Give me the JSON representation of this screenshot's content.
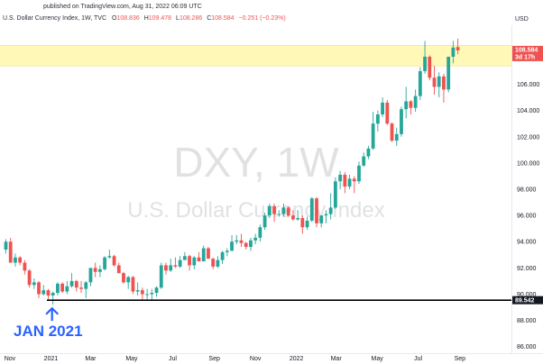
{
  "header": {
    "published": "published on TradingView.com, Aug 31, 2022 06:09 UTC",
    "symbol": "U.S. Dollar Currency Index, 1W, TVC",
    "o_label": "O",
    "o_value": "108.836",
    "h_label": "H",
    "h_value": "109.478",
    "l_label": "L",
    "l_value": "108.286",
    "c_label": "C",
    "c_value": "108.584",
    "change": "−0.251 (−0.23%)"
  },
  "watermark": {
    "line1": "DXY, 1W",
    "line2": "U.S. Dollar Currency Index"
  },
  "axis": {
    "currency": "USD",
    "price_labels": [
      "106.000",
      "104.000",
      "102.000",
      "100.000",
      "98.000",
      "96.000",
      "94.000",
      "92.000",
      "90.000",
      "88.000",
      "86.000"
    ],
    "time_labels": [
      "Nov",
      "2021",
      "Mar",
      "May",
      "Jul",
      "Sep",
      "Nov",
      "2022",
      "Mar",
      "May",
      "Jul",
      "Sep"
    ]
  },
  "price_tag": {
    "value": "108.584",
    "countdown": "3d 17h"
  },
  "support_tag": {
    "value": "89.542"
  },
  "annotation": {
    "text": "JAN 2021"
  },
  "colors": {
    "up": "#26a69a",
    "down": "#ef5350",
    "highlight": "#fff59d",
    "arrow": "#2962ff",
    "line": "#000000"
  },
  "chart_data": {
    "type": "candlestick",
    "title": "U.S. Dollar Currency Index, 1W, TVC",
    "interval": "1W",
    "ylim": [
      85.5,
      110.5
    ],
    "support_level": 89.542,
    "highlight_zone": [
      107.4,
      108.95
    ],
    "annotation": {
      "text": "JAN 2021",
      "x": "2021-01-04"
    },
    "candles": [
      {
        "x": "2020-10-26",
        "o": 93.4,
        "h": 94.2,
        "l": 93.1,
        "c": 94.0
      },
      {
        "x": "2020-11-02",
        "o": 94.0,
        "h": 94.3,
        "l": 92.4,
        "c": 92.4
      },
      {
        "x": "2020-11-09",
        "o": 92.4,
        "h": 93.1,
        "l": 92.1,
        "c": 92.8
      },
      {
        "x": "2020-11-16",
        "o": 92.8,
        "h": 92.9,
        "l": 92.2,
        "c": 92.4
      },
      {
        "x": "2020-11-23",
        "o": 92.4,
        "h": 92.6,
        "l": 91.5,
        "c": 91.8
      },
      {
        "x": "2020-11-30",
        "o": 91.8,
        "h": 91.9,
        "l": 90.5,
        "c": 90.7
      },
      {
        "x": "2020-12-07",
        "o": 90.7,
        "h": 91.2,
        "l": 90.4,
        "c": 90.9
      },
      {
        "x": "2020-12-14",
        "o": 90.9,
        "h": 91.0,
        "l": 89.7,
        "c": 90.0
      },
      {
        "x": "2020-12-21",
        "o": 90.0,
        "h": 90.7,
        "l": 89.9,
        "c": 90.3
      },
      {
        "x": "2020-12-28",
        "o": 90.3,
        "h": 90.4,
        "l": 89.6,
        "c": 89.9
      },
      {
        "x": "2021-01-04",
        "o": 89.9,
        "h": 90.2,
        "l": 89.2,
        "c": 90.1
      },
      {
        "x": "2021-01-11",
        "o": 90.1,
        "h": 90.9,
        "l": 89.9,
        "c": 90.8
      },
      {
        "x": "2021-01-18",
        "o": 90.8,
        "h": 90.9,
        "l": 90.1,
        "c": 90.2
      },
      {
        "x": "2021-01-25",
        "o": 90.2,
        "h": 91.0,
        "l": 90.0,
        "c": 90.6
      },
      {
        "x": "2021-02-01",
        "o": 90.6,
        "h": 91.6,
        "l": 90.5,
        "c": 91.0
      },
      {
        "x": "2021-02-08",
        "o": 91.0,
        "h": 91.1,
        "l": 90.2,
        "c": 90.5
      },
      {
        "x": "2021-02-15",
        "o": 90.5,
        "h": 91.0,
        "l": 90.1,
        "c": 90.4
      },
      {
        "x": "2021-02-22",
        "o": 90.4,
        "h": 91.0,
        "l": 89.7,
        "c": 90.9
      },
      {
        "x": "2021-03-01",
        "o": 90.9,
        "h": 92.0,
        "l": 90.6,
        "c": 92.0
      },
      {
        "x": "2021-03-08",
        "o": 92.0,
        "h": 92.4,
        "l": 91.3,
        "c": 91.7
      },
      {
        "x": "2021-03-15",
        "o": 91.7,
        "h": 92.2,
        "l": 91.3,
        "c": 91.9
      },
      {
        "x": "2021-03-22",
        "o": 91.9,
        "h": 92.9,
        "l": 91.8,
        "c": 92.8
      },
      {
        "x": "2021-03-29",
        "o": 92.8,
        "h": 93.4,
        "l": 92.7,
        "c": 92.9
      },
      {
        "x": "2021-04-05",
        "o": 92.9,
        "h": 93.0,
        "l": 92.1,
        "c": 92.2
      },
      {
        "x": "2021-04-12",
        "o": 92.2,
        "h": 92.4,
        "l": 91.6,
        "c": 91.6
      },
      {
        "x": "2021-04-19",
        "o": 91.6,
        "h": 91.7,
        "l": 90.8,
        "c": 90.9
      },
      {
        "x": "2021-04-26",
        "o": 90.9,
        "h": 91.4,
        "l": 90.4,
        "c": 91.3
      },
      {
        "x": "2021-05-03",
        "o": 91.3,
        "h": 91.4,
        "l": 90.0,
        "c": 90.2
      },
      {
        "x": "2021-05-10",
        "o": 90.2,
        "h": 90.9,
        "l": 89.9,
        "c": 90.3
      },
      {
        "x": "2021-05-17",
        "o": 90.3,
        "h": 90.5,
        "l": 89.6,
        "c": 90.0
      },
      {
        "x": "2021-05-24",
        "o": 90.0,
        "h": 90.4,
        "l": 89.6,
        "c": 90.0
      },
      {
        "x": "2021-05-31",
        "o": 90.0,
        "h": 90.4,
        "l": 89.5,
        "c": 90.1
      },
      {
        "x": "2021-06-07",
        "o": 90.1,
        "h": 90.6,
        "l": 89.8,
        "c": 90.5
      },
      {
        "x": "2021-06-14",
        "o": 90.5,
        "h": 92.4,
        "l": 90.4,
        "c": 92.2
      },
      {
        "x": "2021-06-21",
        "o": 92.2,
        "h": 92.4,
        "l": 91.5,
        "c": 91.8
      },
      {
        "x": "2021-06-28",
        "o": 91.8,
        "h": 92.7,
        "l": 91.7,
        "c": 92.2
      },
      {
        "x": "2021-07-05",
        "o": 92.2,
        "h": 92.8,
        "l": 92.0,
        "c": 92.1
      },
      {
        "x": "2021-07-12",
        "o": 92.1,
        "h": 92.9,
        "l": 92.0,
        "c": 92.6
      },
      {
        "x": "2021-07-19",
        "o": 92.6,
        "h": 93.2,
        "l": 92.6,
        "c": 92.9
      },
      {
        "x": "2021-07-26",
        "o": 92.9,
        "h": 93.0,
        "l": 91.8,
        "c": 92.2
      },
      {
        "x": "2021-08-02",
        "o": 92.2,
        "h": 92.9,
        "l": 91.9,
        "c": 92.8
      },
      {
        "x": "2021-08-09",
        "o": 92.8,
        "h": 93.2,
        "l": 92.5,
        "c": 92.5
      },
      {
        "x": "2021-08-16",
        "o": 92.5,
        "h": 93.7,
        "l": 92.5,
        "c": 93.5
      },
      {
        "x": "2021-08-23",
        "o": 93.5,
        "h": 93.6,
        "l": 92.7,
        "c": 92.7
      },
      {
        "x": "2021-08-30",
        "o": 92.7,
        "h": 92.8,
        "l": 91.9,
        "c": 92.1
      },
      {
        "x": "2021-09-06",
        "o": 92.1,
        "h": 92.9,
        "l": 92.0,
        "c": 92.6
      },
      {
        "x": "2021-09-13",
        "o": 92.6,
        "h": 93.3,
        "l": 92.3,
        "c": 93.2
      },
      {
        "x": "2021-09-20",
        "o": 93.2,
        "h": 93.5,
        "l": 92.9,
        "c": 93.3
      },
      {
        "x": "2021-09-27",
        "o": 93.3,
        "h": 94.5,
        "l": 93.3,
        "c": 94.0
      },
      {
        "x": "2021-10-04",
        "o": 94.0,
        "h": 94.5,
        "l": 93.8,
        "c": 94.1
      },
      {
        "x": "2021-10-11",
        "o": 94.1,
        "h": 94.6,
        "l": 93.6,
        "c": 93.9
      },
      {
        "x": "2021-10-18",
        "o": 93.9,
        "h": 94.0,
        "l": 93.4,
        "c": 93.6
      },
      {
        "x": "2021-10-25",
        "o": 93.6,
        "h": 94.3,
        "l": 93.3,
        "c": 94.1
      },
      {
        "x": "2021-11-01",
        "o": 94.1,
        "h": 94.6,
        "l": 93.8,
        "c": 94.3
      },
      {
        "x": "2021-11-08",
        "o": 94.3,
        "h": 95.3,
        "l": 94.0,
        "c": 95.1
      },
      {
        "x": "2021-11-15",
        "o": 95.1,
        "h": 96.2,
        "l": 94.9,
        "c": 96.0
      },
      {
        "x": "2021-11-22",
        "o": 96.0,
        "h": 96.9,
        "l": 95.8,
        "c": 96.7
      },
      {
        "x": "2021-11-29",
        "o": 96.7,
        "h": 96.9,
        "l": 95.5,
        "c": 96.1
      },
      {
        "x": "2021-12-06",
        "o": 96.1,
        "h": 96.4,
        "l": 95.9,
        "c": 96.1
      },
      {
        "x": "2021-12-13",
        "o": 96.1,
        "h": 96.9,
        "l": 95.9,
        "c": 96.6
      },
      {
        "x": "2021-12-20",
        "o": 96.6,
        "h": 96.7,
        "l": 95.9,
        "c": 96.0
      },
      {
        "x": "2021-12-27",
        "o": 96.0,
        "h": 96.4,
        "l": 95.6,
        "c": 95.7
      },
      {
        "x": "2022-01-03",
        "o": 95.7,
        "h": 96.4,
        "l": 95.6,
        "c": 95.8
      },
      {
        "x": "2022-01-10",
        "o": 95.8,
        "h": 96.0,
        "l": 94.6,
        "c": 95.1
      },
      {
        "x": "2022-01-17",
        "o": 95.1,
        "h": 95.9,
        "l": 94.9,
        "c": 95.6
      },
      {
        "x": "2022-01-24",
        "o": 95.6,
        "h": 97.4,
        "l": 95.5,
        "c": 97.3
      },
      {
        "x": "2022-01-31",
        "o": 97.3,
        "h": 97.4,
        "l": 95.1,
        "c": 95.4
      },
      {
        "x": "2022-02-07",
        "o": 95.4,
        "h": 96.0,
        "l": 95.1,
        "c": 96.0
      },
      {
        "x": "2022-02-14",
        "o": 96.0,
        "h": 96.4,
        "l": 95.4,
        "c": 96.1
      },
      {
        "x": "2022-02-21",
        "o": 96.1,
        "h": 97.7,
        "l": 95.7,
        "c": 96.6
      },
      {
        "x": "2022-02-28",
        "o": 96.6,
        "h": 98.9,
        "l": 96.5,
        "c": 98.6
      },
      {
        "x": "2022-03-07",
        "o": 98.6,
        "h": 99.4,
        "l": 98.0,
        "c": 99.1
      },
      {
        "x": "2022-03-14",
        "o": 99.1,
        "h": 99.3,
        "l": 97.7,
        "c": 98.2
      },
      {
        "x": "2022-03-21",
        "o": 98.2,
        "h": 99.1,
        "l": 98.0,
        "c": 98.8
      },
      {
        "x": "2022-03-28",
        "o": 98.8,
        "h": 99.0,
        "l": 97.7,
        "c": 98.6
      },
      {
        "x": "2022-04-04",
        "o": 98.6,
        "h": 100.1,
        "l": 98.4,
        "c": 99.8
      },
      {
        "x": "2022-04-11",
        "o": 99.8,
        "h": 100.8,
        "l": 99.7,
        "c": 100.5
      },
      {
        "x": "2022-04-18",
        "o": 100.5,
        "h": 101.3,
        "l": 100.3,
        "c": 101.1
      },
      {
        "x": "2022-04-25",
        "o": 101.1,
        "h": 103.9,
        "l": 101.0,
        "c": 103.0
      },
      {
        "x": "2022-05-02",
        "o": 103.0,
        "h": 104.0,
        "l": 102.4,
        "c": 103.7
      },
      {
        "x": "2022-05-09",
        "o": 103.7,
        "h": 105.0,
        "l": 103.5,
        "c": 104.6
      },
      {
        "x": "2022-05-16",
        "o": 104.6,
        "h": 104.8,
        "l": 102.9,
        "c": 103.0
      },
      {
        "x": "2022-05-23",
        "o": 103.0,
        "h": 103.1,
        "l": 101.6,
        "c": 101.7
      },
      {
        "x": "2022-05-30",
        "o": 101.7,
        "h": 102.7,
        "l": 101.3,
        "c": 102.2
      },
      {
        "x": "2022-06-06",
        "o": 102.2,
        "h": 104.3,
        "l": 102.0,
        "c": 104.1
      },
      {
        "x": "2022-06-13",
        "o": 104.1,
        "h": 105.8,
        "l": 103.4,
        "c": 104.7
      },
      {
        "x": "2022-06-20",
        "o": 104.7,
        "h": 104.8,
        "l": 103.7,
        "c": 104.2
      },
      {
        "x": "2022-06-27",
        "o": 104.2,
        "h": 105.6,
        "l": 103.9,
        "c": 105.1
      },
      {
        "x": "2022-07-04",
        "o": 105.1,
        "h": 107.3,
        "l": 104.8,
        "c": 107.0
      },
      {
        "x": "2022-07-11",
        "o": 107.0,
        "h": 109.3,
        "l": 106.8,
        "c": 108.1
      },
      {
        "x": "2022-07-18",
        "o": 108.1,
        "h": 108.2,
        "l": 106.3,
        "c": 106.5
      },
      {
        "x": "2022-07-25",
        "o": 106.5,
        "h": 107.4,
        "l": 105.2,
        "c": 105.8
      },
      {
        "x": "2022-08-01",
        "o": 105.8,
        "h": 106.9,
        "l": 105.0,
        "c": 106.6
      },
      {
        "x": "2022-08-08",
        "o": 106.6,
        "h": 106.8,
        "l": 104.6,
        "c": 105.6
      },
      {
        "x": "2022-08-15",
        "o": 105.6,
        "h": 108.0,
        "l": 105.4,
        "c": 108.1
      },
      {
        "x": "2022-08-22",
        "o": 108.1,
        "h": 109.3,
        "l": 107.6,
        "c": 108.8
      },
      {
        "x": "2022-08-29",
        "o": 108.836,
        "h": 109.478,
        "l": 108.286,
        "c": 108.584
      }
    ]
  }
}
